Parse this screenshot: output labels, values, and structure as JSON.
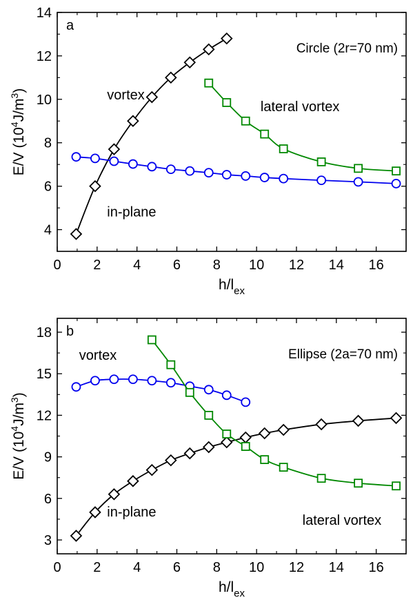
{
  "chart_data": [
    {
      "type": "line",
      "panel_label": "a",
      "annotation": "Circle (2r=70 nm)",
      "xlabel": "h/l",
      "xlabel_sub": "ex",
      "ylabel": "E/V (10",
      "ylabel_sup": "4",
      "ylabel_tail": "J/m",
      "ylabel_sup2": "3",
      "ylabel_end": ")",
      "xlim": [
        0,
        17.5
      ],
      "ylim": [
        3,
        14
      ],
      "xticks": [
        0,
        2,
        4,
        6,
        8,
        10,
        12,
        14,
        16
      ],
      "yticks": [
        4,
        6,
        8,
        10,
        12,
        14
      ],
      "series": [
        {
          "color": "#000000",
          "marker": "diamond",
          "x": [
            0.95,
            1.9,
            2.85,
            3.8,
            4.75,
            5.7,
            6.65,
            7.6,
            8.5
          ],
          "y": [
            3.8,
            6.0,
            7.7,
            9.0,
            10.1,
            11.0,
            11.7,
            12.3,
            12.8
          ]
        },
        {
          "color": "#0000ee",
          "marker": "circle",
          "x": [
            0.95,
            1.9,
            2.85,
            3.8,
            4.75,
            5.7,
            6.65,
            7.6,
            8.5,
            9.45,
            10.4,
            11.35,
            13.25,
            15.1,
            17.0
          ],
          "y": [
            7.35,
            7.28,
            7.15,
            7.02,
            6.9,
            6.78,
            6.7,
            6.62,
            6.53,
            6.47,
            6.4,
            6.35,
            6.27,
            6.2,
            6.12
          ]
        },
        {
          "color": "#008800",
          "marker": "square",
          "x": [
            7.6,
            8.5,
            9.45,
            10.4,
            11.35,
            13.25,
            15.1,
            17.0
          ],
          "y": [
            10.75,
            9.85,
            9.0,
            8.4,
            7.72,
            7.12,
            6.82,
            6.7
          ]
        }
      ],
      "labels": [
        {
          "text": "vortex",
          "x": 2.5,
          "y": 10.0
        },
        {
          "text": "in-plane",
          "x": 2.5,
          "y": 4.6
        },
        {
          "text": "lateral vortex",
          "x": 10.2,
          "y": 9.45
        }
      ]
    },
    {
      "type": "line",
      "panel_label": "b",
      "annotation": "Ellipse (2a=70 nm)",
      "xlabel": "h/l",
      "xlabel_sub": "ex",
      "ylabel": "E/V (10",
      "ylabel_sup": "4",
      "ylabel_tail": "J/m",
      "ylabel_sup2": "3",
      "ylabel_end": ")",
      "xlim": [
        0,
        17.5
      ],
      "ylim": [
        2,
        19
      ],
      "xticks": [
        0,
        2,
        4,
        6,
        8,
        10,
        12,
        14,
        16
      ],
      "yticks": [
        3,
        6,
        9,
        12,
        15,
        18
      ],
      "series": [
        {
          "color": "#000000",
          "marker": "diamond",
          "x": [
            0.95,
            1.9,
            2.85,
            3.8,
            4.75,
            5.7,
            6.65,
            7.6,
            8.5,
            9.45,
            10.4,
            11.35,
            13.25,
            15.1,
            17.0
          ],
          "y": [
            3.3,
            5.0,
            6.3,
            7.25,
            8.05,
            8.75,
            9.25,
            9.7,
            10.05,
            10.4,
            10.7,
            10.95,
            11.35,
            11.6,
            11.8
          ]
        },
        {
          "color": "#0000ee",
          "marker": "circle",
          "x": [
            0.95,
            1.9,
            2.85,
            3.8,
            4.75,
            5.7,
            6.65,
            7.6,
            8.5,
            9.45
          ],
          "y": [
            14.05,
            14.5,
            14.6,
            14.6,
            14.5,
            14.35,
            14.1,
            13.85,
            13.45,
            12.95
          ]
        },
        {
          "color": "#008800",
          "marker": "square",
          "x": [
            4.75,
            5.7,
            6.65,
            7.6,
            8.5,
            9.45,
            10.4,
            11.35,
            13.25,
            15.1,
            17.0
          ],
          "y": [
            17.45,
            15.65,
            13.65,
            12.0,
            10.65,
            9.75,
            8.8,
            8.25,
            7.45,
            7.1,
            6.9
          ]
        }
      ],
      "labels": [
        {
          "text": "vortex",
          "x": 1.1,
          "y": 16.0
        },
        {
          "text": "in-plane",
          "x": 2.5,
          "y": 4.7
        },
        {
          "text": "lateral vortex",
          "x": 12.3,
          "y": 4.1
        }
      ]
    }
  ]
}
